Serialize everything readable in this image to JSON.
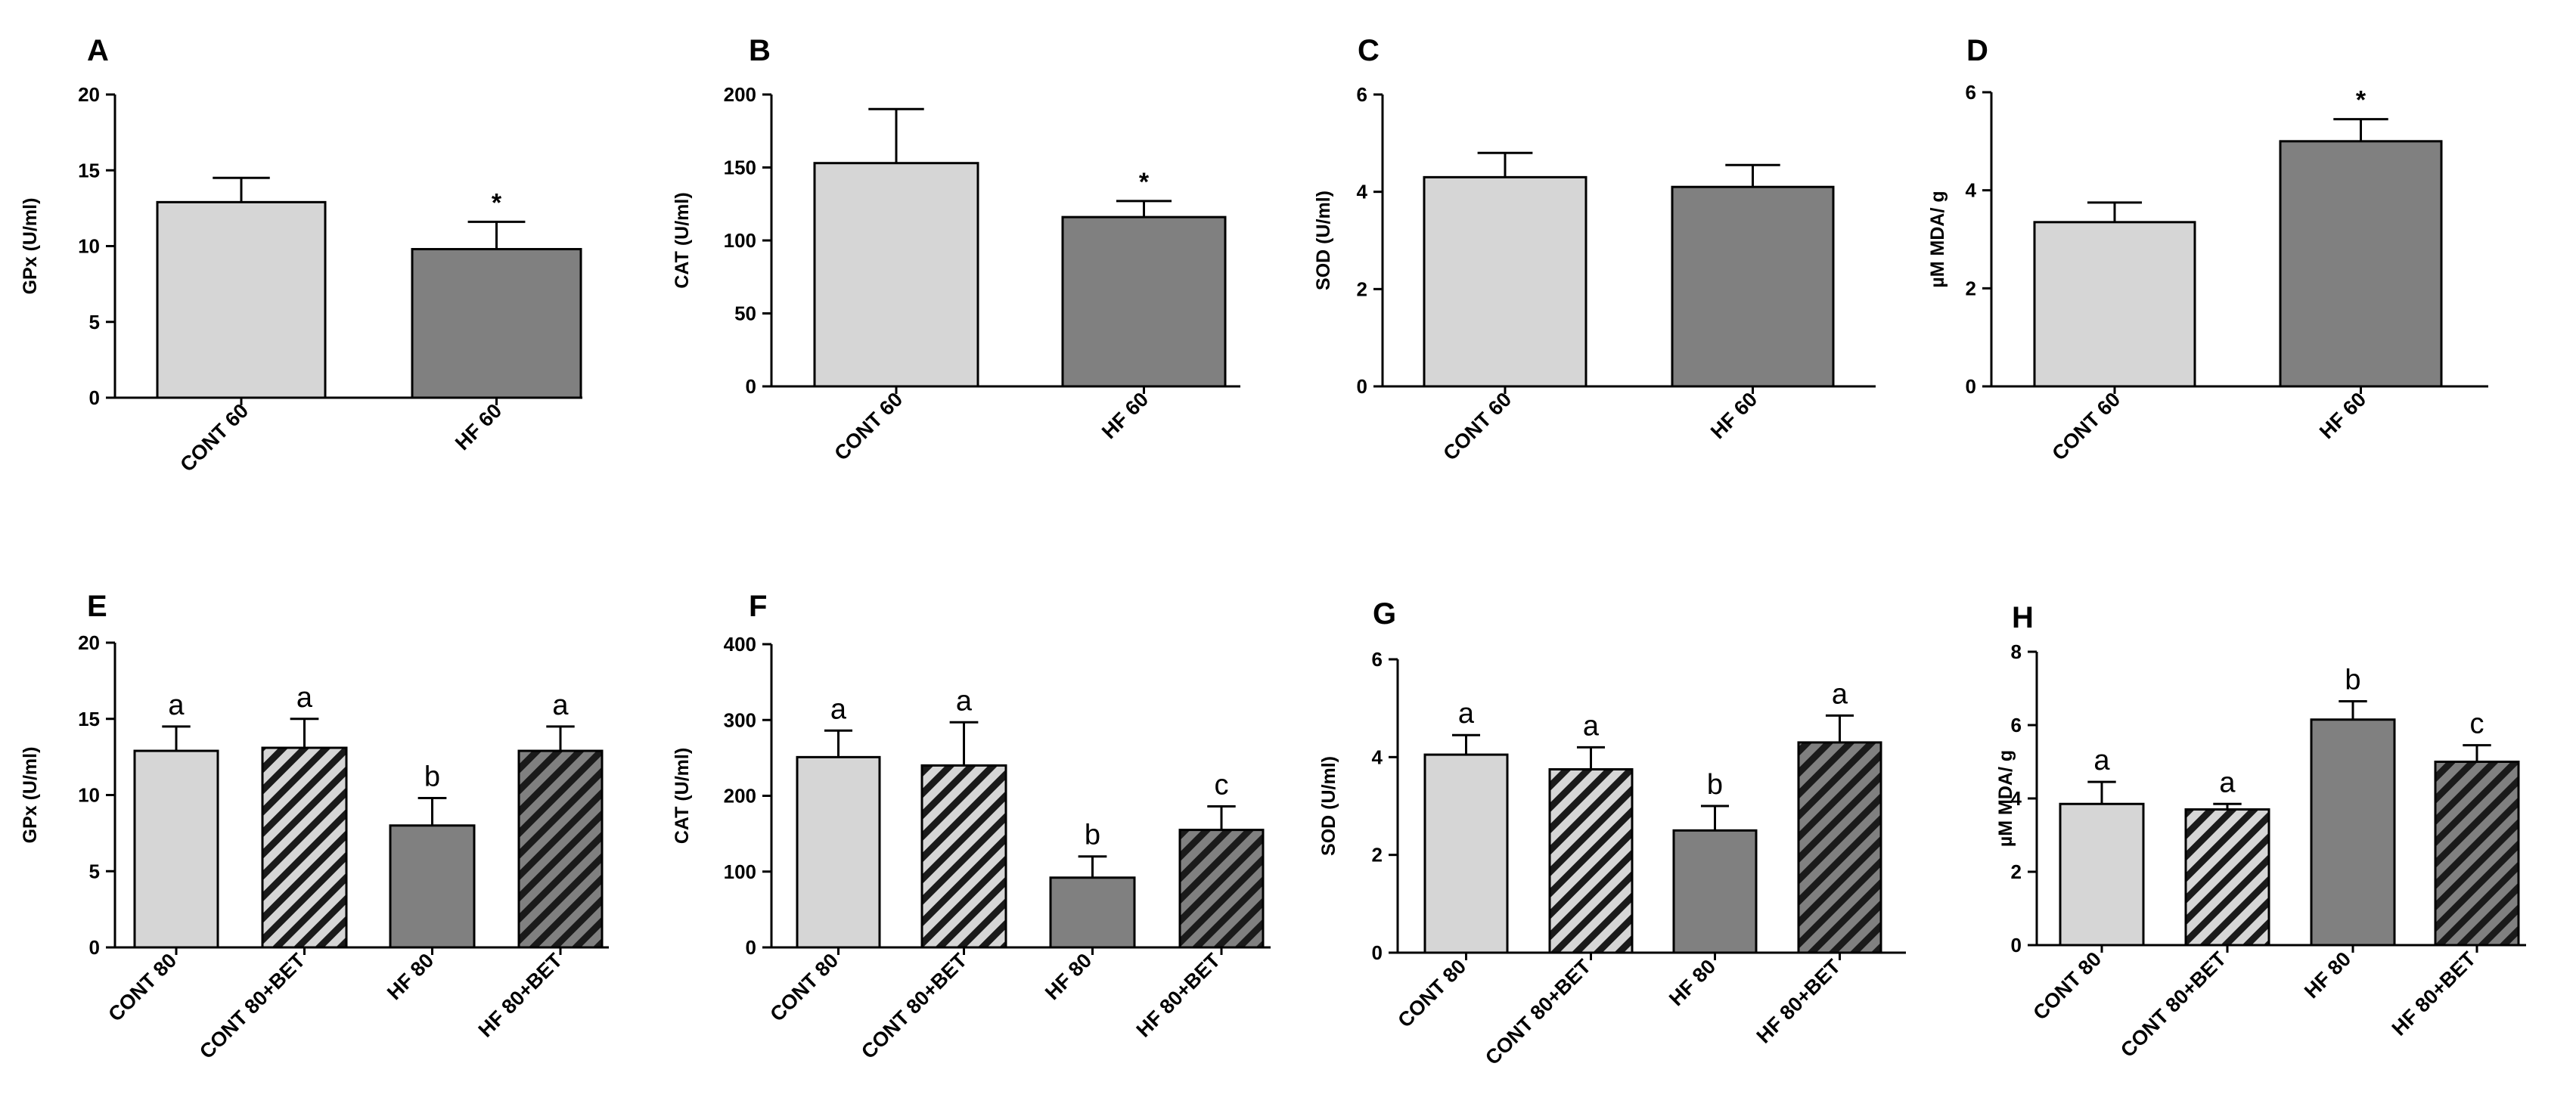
{
  "chart_data": [
    {
      "type": "bar",
      "panel": "A",
      "ylabel": "GPx (U/ml)",
      "ylim": [
        0,
        20
      ],
      "yticks": [
        "0",
        "5",
        "10",
        "15",
        "20"
      ],
      "categories": [
        "CONT 60",
        "HF 60"
      ],
      "values": [
        12.9,
        9.8
      ],
      "errors": [
        1.6,
        1.8
      ],
      "annotations": [
        "",
        "*"
      ],
      "fills": [
        "#d6d6d6",
        "#808080"
      ],
      "hatch": [
        false,
        false
      ]
    },
    {
      "type": "bar",
      "panel": "B",
      "ylabel": "CAT (U/ml)",
      "ylim": [
        0,
        200
      ],
      "yticks": [
        "0",
        "50",
        "100",
        "150",
        "200"
      ],
      "categories": [
        "CONT 60",
        "HF 60"
      ],
      "values": [
        153,
        116
      ],
      "errors": [
        37,
        11
      ],
      "annotations": [
        "",
        "*"
      ],
      "fills": [
        "#d6d6d6",
        "#808080"
      ],
      "hatch": [
        false,
        false
      ]
    },
    {
      "type": "bar",
      "panel": "C",
      "ylabel": "SOD (U/ml)",
      "ylim": [
        0,
        6
      ],
      "yticks": [
        "0",
        "2",
        "4",
        "6"
      ],
      "categories": [
        "CONT 60",
        "HF 60"
      ],
      "values": [
        4.3,
        4.1
      ],
      "errors": [
        0.5,
        0.45
      ],
      "annotations": [
        "",
        ""
      ],
      "fills": [
        "#d6d6d6",
        "#808080"
      ],
      "hatch": [
        false,
        false
      ]
    },
    {
      "type": "bar",
      "panel": "D",
      "ylabel": "µM MDA/ g",
      "ylim": [
        0,
        6
      ],
      "yticks": [
        "0",
        "2",
        "4",
        "6"
      ],
      "categories": [
        "CONT 60",
        "HF 60"
      ],
      "values": [
        3.35,
        5.0
      ],
      "errors": [
        0.4,
        0.45
      ],
      "annotations": [
        "",
        "*"
      ],
      "fills": [
        "#d6d6d6",
        "#808080"
      ],
      "hatch": [
        false,
        false
      ]
    },
    {
      "type": "bar",
      "panel": "E",
      "ylabel": "GPx (U/ml)",
      "ylim": [
        0,
        20
      ],
      "yticks": [
        "0",
        "5",
        "10",
        "15",
        "20"
      ],
      "categories": [
        "CONT 80",
        "CONT 80+BET",
        "HF 80",
        "HF 80+BET"
      ],
      "values": [
        12.9,
        13.1,
        8.0,
        12.9
      ],
      "errors": [
        1.6,
        1.9,
        1.8,
        1.6
      ],
      "annotations": [
        "a",
        "a",
        "b",
        "a"
      ],
      "fills": [
        "#d6d6d6",
        "#d6d6d6",
        "#808080",
        "#808080"
      ],
      "hatch": [
        false,
        true,
        false,
        true
      ]
    },
    {
      "type": "bar",
      "panel": "F",
      "ylabel": "CAT (U/ml)",
      "ylim": [
        0,
        400
      ],
      "yticks": [
        "0",
        "100",
        "200",
        "300",
        "400"
      ],
      "categories": [
        "CONT 80",
        "CONT 80+BET",
        "HF 80",
        "HF 80+BET"
      ],
      "values": [
        251,
        240,
        92,
        155
      ],
      "errors": [
        35,
        57,
        28,
        31
      ],
      "annotations": [
        "a",
        "a",
        "b",
        "c"
      ],
      "fills": [
        "#d6d6d6",
        "#d6d6d6",
        "#808080",
        "#808080"
      ],
      "hatch": [
        false,
        true,
        false,
        true
      ]
    },
    {
      "type": "bar",
      "panel": "G",
      "ylabel": "SOD (U/ml)",
      "ylim": [
        0,
        6
      ],
      "yticks": [
        "0",
        "2",
        "4",
        "6"
      ],
      "categories": [
        "CONT 80",
        "CONT 80+BET",
        "HF 80",
        "HF 80+BET"
      ],
      "values": [
        4.05,
        3.75,
        2.5,
        4.3
      ],
      "errors": [
        0.4,
        0.45,
        0.5,
        0.55
      ],
      "annotations": [
        "a",
        "a",
        "b",
        "a"
      ],
      "fills": [
        "#d6d6d6",
        "#d6d6d6",
        "#808080",
        "#808080"
      ],
      "hatch": [
        false,
        true,
        false,
        true
      ]
    },
    {
      "type": "bar",
      "panel": "H",
      "ylabel": "µM MDA/ g",
      "ylim": [
        0,
        8
      ],
      "yticks": [
        "0",
        "2",
        "4",
        "6",
        "8"
      ],
      "categories": [
        "CONT 80",
        "CONT 80+BET",
        "HF 80",
        "HF 80+BET"
      ],
      "values": [
        3.85,
        3.7,
        6.15,
        5.0
      ],
      "errors": [
        0.6,
        0.15,
        0.5,
        0.45
      ],
      "annotations": [
        "a",
        "a",
        "b",
        "c"
      ],
      "fills": [
        "#d6d6d6",
        "#d6d6d6",
        "#808080",
        "#808080"
      ],
      "hatch": [
        false,
        true,
        false,
        true
      ]
    }
  ]
}
